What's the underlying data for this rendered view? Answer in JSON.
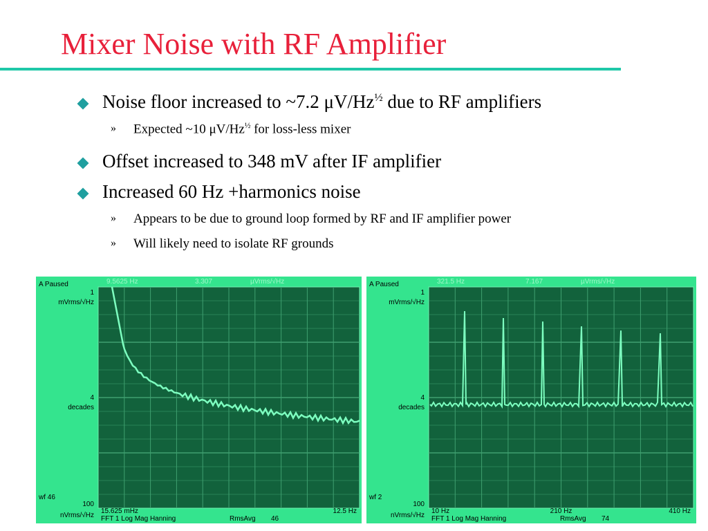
{
  "title": "Mixer Noise with RF Amplifier",
  "bullets": [
    {
      "before": "Noise floor increased to ~7.2 μV/Hz",
      "sup": "½",
      "after": " due to RF amplifiers",
      "sub": [
        {
          "before": "Expected ~10 μV/Hz",
          "sup": "½",
          "after": " for loss-less mixer"
        }
      ]
    },
    {
      "before": "Offset increased to 348 mV after IF amplifier",
      "sub": []
    },
    {
      "before": "Increased 60 Hz +harmonics noise",
      "sub": [
        {
          "before": "Appears to be due to ground loop formed by RF and IF amplifier power"
        },
        {
          "before": "Will likely need to isolate RF grounds"
        }
      ]
    }
  ],
  "sub_marker": "»",
  "screens": [
    {
      "status": "A Paused",
      "top_value": "1",
      "top_unit": "mVrms/√Hz",
      "mid_value": "4",
      "mid_unit": "decades",
      "wf": "wf 46",
      "bottom_value": "100",
      "bottom_unit": "nVrms/√Hz",
      "marker_freq": "9.5625 Hz",
      "marker_value": "3.307",
      "marker_unit": "µVrms/√Hz",
      "x_labels": [
        "15.625 mHz",
        "12.5 Hz"
      ],
      "footer": "FFT 1 Log Mag Hanning",
      "avg_label": "RmsAvg",
      "avg_count": "46"
    },
    {
      "status": "A Paused",
      "top_value": "1",
      "top_unit": "mVrms/√Hz",
      "mid_value": "4",
      "mid_unit": "decades",
      "wf": "wf 2",
      "bottom_value": "100",
      "bottom_unit": "nVrms/√Hz",
      "marker_freq": "321.5 Hz",
      "marker_value": "7.167",
      "marker_unit": "µVrms/√Hz",
      "x_labels": [
        "10 Hz",
        "210 Hz",
        "410 Hz"
      ],
      "footer": "FFT 1 Log Mag Hanning",
      "avg_label": "RmsAvg",
      "avg_count": "74"
    }
  ]
}
